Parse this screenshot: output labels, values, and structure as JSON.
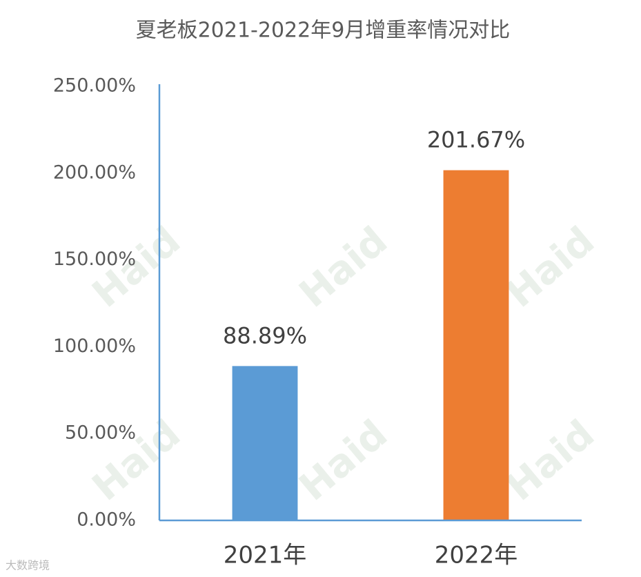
{
  "chart_data": {
    "type": "bar",
    "title": "夏老板2021-2022年9月增重率情况对比",
    "categories": [
      "2021年",
      "2022年"
    ],
    "values": [
      88.89,
      201.67
    ],
    "value_labels": [
      "88.89%",
      "201.67%"
    ],
    "colors": [
      "#5b9bd5",
      "#ed7d31"
    ],
    "ylim": [
      0,
      250
    ],
    "yticks": [
      {
        "value": 0,
        "label": "0.00%"
      },
      {
        "value": 50,
        "label": "50.00%"
      },
      {
        "value": 100,
        "label": "100.00%"
      },
      {
        "value": 150,
        "label": "150.00%"
      },
      {
        "value": 200,
        "label": "200.00%"
      },
      {
        "value": 250,
        "label": "250.00%"
      }
    ],
    "grid": false,
    "watermark": "Haid",
    "source": "大数跨境"
  }
}
